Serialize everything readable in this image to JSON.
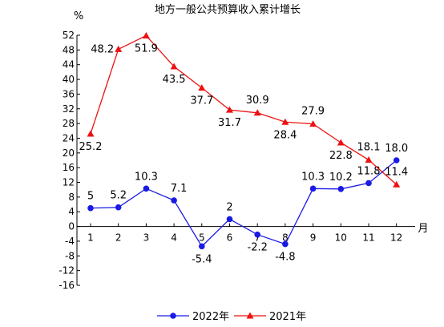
{
  "chart_data": {
    "type": "line",
    "title": "地方一般公共预算收入累计增长",
    "ylabel": "%",
    "xlabel": "月",
    "categories": [
      "1",
      "2",
      "3",
      "4",
      "5",
      "6",
      "7",
      "8",
      "9",
      "10",
      "11",
      "12"
    ],
    "ylim": [
      -16,
      52
    ],
    "yticks": [
      52,
      48,
      44,
      40,
      36,
      32,
      28,
      24,
      20,
      16,
      12,
      8,
      4,
      0,
      -4,
      -8,
      -12,
      -16
    ],
    "grid": false,
    "legend_position": "bottom",
    "series": [
      {
        "name": "2022年",
        "color": "#1a1ae6",
        "marker": "circle",
        "values": [
          5,
          5.2,
          10.3,
          7.1,
          -5.4,
          2,
          -2.2,
          -4.8,
          10.3,
          10.2,
          11.8,
          18.0
        ],
        "labels": [
          "5",
          "5.2",
          "10.3",
          "7.1",
          "-5.4",
          "2",
          "-2.2",
          "-4.8",
          "10.3",
          "10.2",
          "11.8",
          "18.0"
        ]
      },
      {
        "name": "2021年",
        "color": "#ee1111",
        "marker": "triangle",
        "values": [
          25.2,
          48.2,
          51.9,
          43.5,
          37.7,
          31.7,
          30.9,
          28.4,
          27.9,
          22.8,
          18.1,
          11.4
        ],
        "labels": [
          "25.2",
          "48.2",
          "51.9",
          "43.5",
          "37.7",
          "31.7",
          "30.9",
          "28.4",
          "27.9",
          "22.8",
          "18.1",
          "11.4"
        ]
      }
    ]
  }
}
